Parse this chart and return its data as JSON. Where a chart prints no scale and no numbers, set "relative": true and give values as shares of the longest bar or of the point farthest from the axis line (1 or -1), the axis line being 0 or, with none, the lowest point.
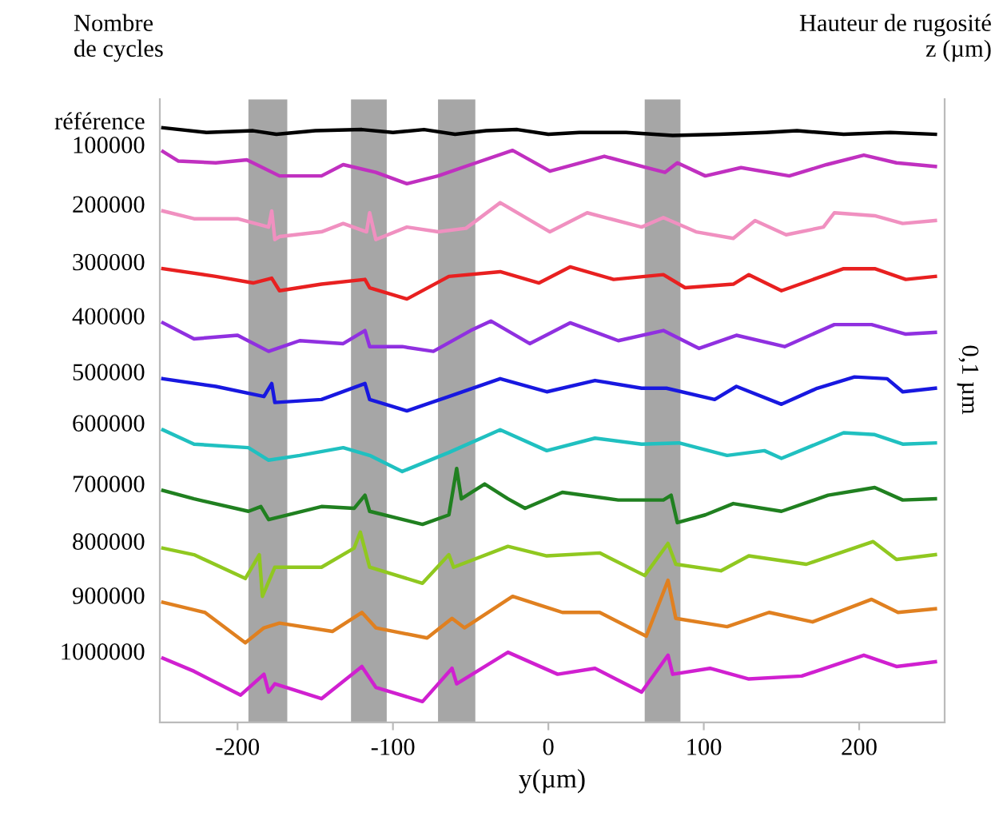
{
  "chart_data": {
    "type": "line",
    "relative": true,
    "ylabel": "Nombre\nde cycles",
    "y2label": "Hauteur de rugosité\nz (µm)",
    "xlabel": "y(µm)",
    "annotations": [
      "0,1 µm"
    ],
    "xlim": [
      -250,
      255
    ],
    "xticks": [
      -200,
      -100,
      0,
      100,
      200
    ],
    "bands": [
      {
        "axis": "x",
        "from": -193,
        "to": -168,
        "color": "#a6a6a6"
      },
      {
        "axis": "x",
        "from": -127,
        "to": -104,
        "color": "#a6a6a6"
      },
      {
        "axis": "x",
        "from": -71,
        "to": -47,
        "color": "#a6a6a6"
      },
      {
        "axis": "x",
        "from": 62,
        "to": 85,
        "color": "#a6a6a6"
      }
    ],
    "series": [
      {
        "name": "référence",
        "color": "#000000",
        "x": [
          -248,
          -220,
          -190,
          -175,
          -150,
          -120,
          -100,
          -80,
          -60,
          -40,
          -20,
          0,
          20,
          50,
          80,
          110,
          140,
          160,
          190,
          220,
          249
        ],
        "values": [
          1,
          0.992,
          0.995,
          0.989,
          0.995,
          0.997,
          0.992,
          0.997,
          0.989,
          0.995,
          0.997,
          0.989,
          0.992,
          0.992,
          0.987,
          0.989,
          0.992,
          0.995,
          0.989,
          0.992,
          0.989
        ]
      },
      {
        "name": "100000",
        "color": "#c030c0",
        "x": [
          -248,
          -238,
          -214,
          -194,
          -173,
          -146,
          -132,
          -111,
          -91,
          -71,
          -50,
          -23,
          1,
          36,
          63,
          75,
          83,
          101,
          124,
          155,
          179,
          203,
          224,
          249
        ],
        "values": [
          0.96,
          0.944,
          0.941,
          0.946,
          0.919,
          0.919,
          0.938,
          0.925,
          0.906,
          0.919,
          0.938,
          0.962,
          0.927,
          0.952,
          0.933,
          0.925,
          0.941,
          0.919,
          0.933,
          0.919,
          0.938,
          0.954,
          0.941,
          0.935
        ]
      },
      {
        "name": "200000",
        "color": "#f090c0",
        "x": [
          -248,
          -228,
          -200,
          -180,
          -178,
          -176,
          -173,
          -146,
          -132,
          -117,
          -115,
          -111,
          -91,
          -71,
          -53,
          -31,
          1,
          25,
          60,
          74,
          95,
          119,
          133,
          153,
          177,
          184,
          210,
          228,
          249
        ],
        "values": [
          0.86,
          0.847,
          0.847,
          0.833,
          0.86,
          0.812,
          0.817,
          0.825,
          0.839,
          0.825,
          0.857,
          0.812,
          0.833,
          0.825,
          0.831,
          0.874,
          0.825,
          0.857,
          0.833,
          0.849,
          0.825,
          0.814,
          0.844,
          0.82,
          0.833,
          0.857,
          0.852,
          0.839,
          0.844
        ]
      },
      {
        "name": "300000",
        "color": "#e82020",
        "x": [
          -248,
          -214,
          -190,
          -178,
          -173,
          -146,
          -118,
          -115,
          -91,
          -64,
          -31,
          -6,
          14,
          42,
          74,
          88,
          119,
          129,
          150,
          190,
          210,
          230,
          249
        ],
        "values": [
          0.763,
          0.75,
          0.739,
          0.747,
          0.726,
          0.737,
          0.745,
          0.731,
          0.712,
          0.75,
          0.758,
          0.739,
          0.766,
          0.745,
          0.753,
          0.731,
          0.737,
          0.753,
          0.726,
          0.763,
          0.763,
          0.745,
          0.75
        ]
      },
      {
        "name": "400000",
        "color": "#9030e0",
        "x": [
          -248,
          -228,
          -200,
          -180,
          -160,
          -132,
          -118,
          -115,
          -94,
          -74,
          -50,
          -37,
          -12,
          14,
          45,
          74,
          97,
          121,
          152,
          184,
          208,
          230,
          249
        ],
        "values": [
          0.672,
          0.645,
          0.651,
          0.624,
          0.642,
          0.637,
          0.659,
          0.632,
          0.632,
          0.624,
          0.659,
          0.675,
          0.637,
          0.672,
          0.642,
          0.659,
          0.629,
          0.651,
          0.632,
          0.669,
          0.669,
          0.653,
          0.656
        ]
      },
      {
        "name": "500000",
        "color": "#1818e0",
        "x": [
          -248,
          -214,
          -183,
          -178,
          -176,
          -146,
          -118,
          -115,
          -91,
          -64,
          -31,
          -1,
          30,
          60,
          76,
          107,
          121,
          150,
          173,
          197,
          218,
          228,
          249
        ],
        "values": [
          0.578,
          0.565,
          0.548,
          0.57,
          0.538,
          0.543,
          0.57,
          0.543,
          0.524,
          0.548,
          0.578,
          0.556,
          0.575,
          0.562,
          0.562,
          0.543,
          0.565,
          0.535,
          0.562,
          0.581,
          0.578,
          0.556,
          0.562
        ]
      },
      {
        "name": "600000",
        "color": "#20c0c0",
        "x": [
          -248,
          -228,
          -193,
          -180,
          -160,
          -132,
          -115,
          -94,
          -64,
          -31,
          -1,
          30,
          60,
          84,
          115,
          139,
          150,
          190,
          210,
          228,
          249
        ],
        "values": [
          0.492,
          0.468,
          0.462,
          0.441,
          0.449,
          0.462,
          0.449,
          0.422,
          0.454,
          0.492,
          0.457,
          0.478,
          0.468,
          0.47,
          0.449,
          0.457,
          0.444,
          0.487,
          0.484,
          0.468,
          0.47
        ]
      },
      {
        "name": "700000",
        "color": "#208020",
        "x": [
          -248,
          -228,
          -193,
          -185,
          -180,
          -146,
          -125,
          -118,
          -115,
          -81,
          -64,
          -59,
          -56,
          -41,
          -26,
          -15,
          9,
          45,
          74,
          79,
          83,
          101,
          119,
          150,
          180,
          210,
          228,
          249
        ],
        "values": [
          0.39,
          0.376,
          0.355,
          0.363,
          0.341,
          0.363,
          0.36,
          0.382,
          0.355,
          0.333,
          0.349,
          0.427,
          0.376,
          0.401,
          0.376,
          0.36,
          0.387,
          0.374,
          0.374,
          0.382,
          0.336,
          0.349,
          0.368,
          0.355,
          0.382,
          0.395,
          0.374,
          0.376
        ]
      },
      {
        "name": "800000",
        "color": "#90c820",
        "x": [
          -248,
          -228,
          -195,
          -186,
          -184,
          -176,
          -146,
          -125,
          -121,
          -115,
          -81,
          -64,
          -61,
          -26,
          -1,
          33,
          62,
          77,
          82,
          111,
          129,
          166,
          209,
          224,
          249
        ],
        "values": [
          0.293,
          0.282,
          0.242,
          0.282,
          0.212,
          0.261,
          0.261,
          0.293,
          0.32,
          0.261,
          0.234,
          0.282,
          0.261,
          0.296,
          0.28,
          0.285,
          0.247,
          0.301,
          0.266,
          0.255,
          0.28,
          0.266,
          0.304,
          0.274,
          0.282
        ]
      },
      {
        "name": "900000",
        "color": "#e08020",
        "x": [
          -248,
          -221,
          -195,
          -183,
          -173,
          -139,
          -120,
          -111,
          -78,
          -62,
          -54,
          -23,
          9,
          33,
          63,
          77,
          82,
          115,
          142,
          170,
          208,
          225,
          249
        ],
        "values": [
          0.202,
          0.185,
          0.134,
          0.159,
          0.167,
          0.153,
          0.185,
          0.159,
          0.142,
          0.175,
          0.159,
          0.212,
          0.185,
          0.185,
          0.145,
          0.239,
          0.175,
          0.161,
          0.185,
          0.169,
          0.207,
          0.185,
          0.191
        ]
      },
      {
        "name": "1000000",
        "color": "#d020d0",
        "x": [
          -248,
          -228,
          -198,
          -183,
          -180,
          -176,
          -146,
          -120,
          -111,
          -81,
          -62,
          -59,
          -26,
          6,
          30,
          60,
          77,
          80,
          104,
          129,
          163,
          203,
          224,
          249
        ],
        "values": [
          0.108,
          0.086,
          0.046,
          0.081,
          0.051,
          0.065,
          0.04,
          0.094,
          0.059,
          0.035,
          0.091,
          0.065,
          0.118,
          0.081,
          0.091,
          0.051,
          0.113,
          0.081,
          0.091,
          0.073,
          0.078,
          0.113,
          0.094,
          0.102
        ]
      }
    ]
  }
}
